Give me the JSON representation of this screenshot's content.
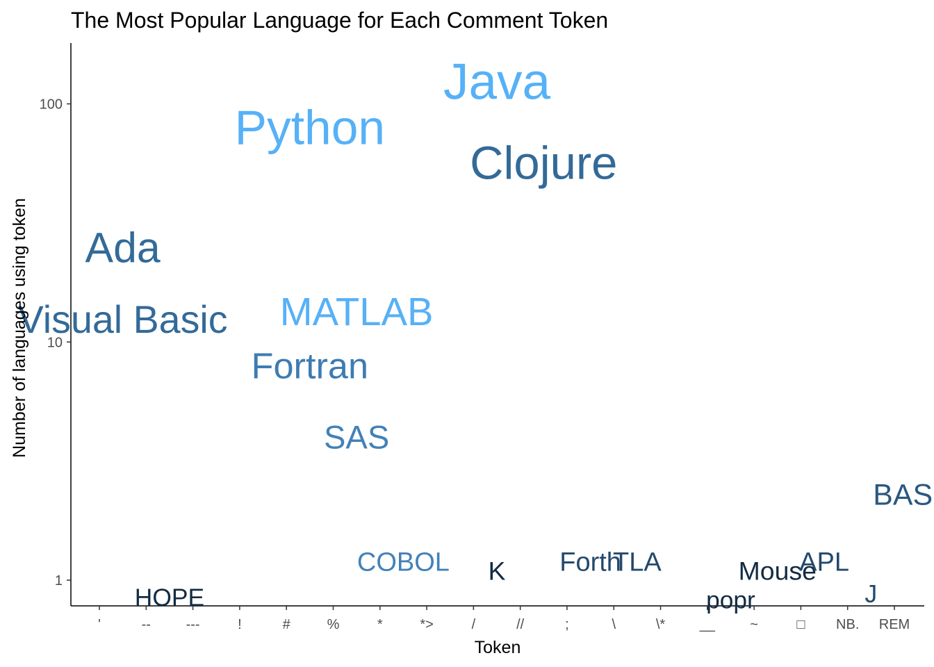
{
  "chart_data": {
    "type": "scatter",
    "title": "The Most Popular Language for Each Comment Token",
    "xlabel": "Token",
    "ylabel": "Number of languages using token",
    "y_scale": "log10",
    "ylim": [
      0.78,
      180
    ],
    "y_ticks": [
      1,
      10,
      100
    ],
    "grid": false,
    "legend": "none",
    "categories": [
      "'",
      "--",
      "---",
      "!",
      "#",
      "%",
      "*",
      "*>",
      "/",
      "//",
      ";",
      "\\",
      "\\*",
      "__",
      "~",
      "□",
      "NB.",
      "REM"
    ],
    "points": [
      {
        "token": "'",
        "language": "Ada",
        "value": 25,
        "color": "#336a98"
      },
      {
        "token": "'",
        "language": "Visual Basic",
        "value": 12.5,
        "color": "#336a98"
      },
      {
        "token": "--",
        "language": "HOPE",
        "value": 0.85,
        "color": "#132b43"
      },
      {
        "token": "#",
        "language": "Python",
        "value": 80,
        "color": "#56b1f7"
      },
      {
        "token": "#",
        "language": "Fortran",
        "value": 8,
        "color": "#3d7cb2"
      },
      {
        "token": "%",
        "language": "MATLAB",
        "value": 13.5,
        "color": "#56b1f7"
      },
      {
        "token": "%",
        "language": "SAS",
        "value": 4,
        "color": "#4381b8"
      },
      {
        "token": "*",
        "language": "COBOL",
        "value": 1.2,
        "color": "#4381b8"
      },
      {
        "token": "/",
        "language": "Java",
        "value": 125,
        "color": "#56b1f7"
      },
      {
        "token": "/",
        "language": "K",
        "value": 1.1,
        "color": "#132b43"
      },
      {
        "token": "//",
        "language": "Clojure",
        "value": 57,
        "color": "#336a98"
      },
      {
        "token": ";",
        "language": "Forth",
        "value": 1.2,
        "color": "#23496c"
      },
      {
        "token": "\\",
        "language": "TLA",
        "value": 1.2,
        "color": "#23496c"
      },
      {
        "token": "__",
        "language": "popr",
        "value": 0.83,
        "color": "#132b43"
      },
      {
        "token": "~",
        "language": "Mouse",
        "value": 1.1,
        "color": "#132b43"
      },
      {
        "token": "□",
        "language": "APL",
        "value": 1.2,
        "color": "#23496c"
      },
      {
        "token": "NB.",
        "language": "J",
        "value": 0.88,
        "color": "#23496c"
      },
      {
        "token": "REM",
        "language": "BASIC",
        "value": 2.3,
        "color": "#2a5880"
      }
    ]
  }
}
